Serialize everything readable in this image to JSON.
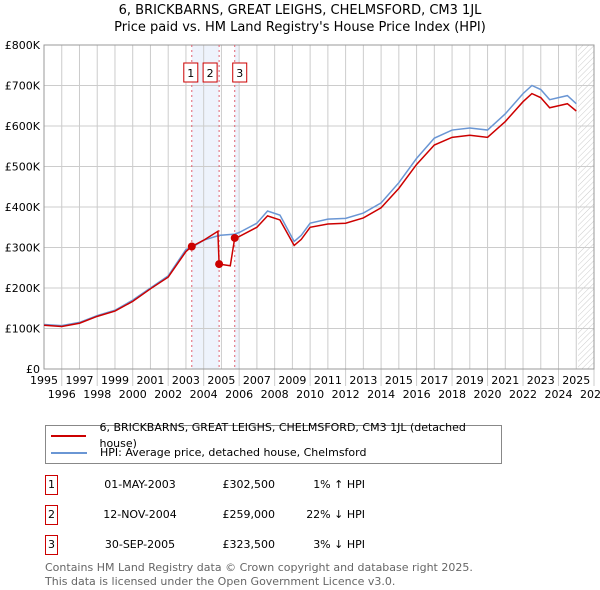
{
  "title": "6, BRICKBARNS, GREAT LEIGHS, CHELMSFORD, CM3 1JL",
  "subtitle": "Price paid vs. HM Land Registry's House Price Index (HPI)",
  "chart_data": {
    "type": "line",
    "ylim": [
      0,
      800000
    ],
    "xlim": [
      1995,
      2026
    ],
    "yticks": [
      {
        "v": 0,
        "label": "£0"
      },
      {
        "v": 100000,
        "label": "£100K"
      },
      {
        "v": 200000,
        "label": "£200K"
      },
      {
        "v": 300000,
        "label": "£300K"
      },
      {
        "v": 400000,
        "label": "£400K"
      },
      {
        "v": 500000,
        "label": "£500K"
      },
      {
        "v": 600000,
        "label": "£600K"
      },
      {
        "v": 700000,
        "label": "£700K"
      },
      {
        "v": 800000,
        "label": "£800K"
      }
    ],
    "xticks": [
      "1995",
      "1996",
      "1997",
      "1998",
      "1999",
      "2000",
      "2001",
      "2002",
      "2003",
      "2004",
      "2005",
      "2006",
      "2007",
      "2008",
      "2009",
      "2010",
      "2011",
      "2012",
      "2013",
      "2014",
      "2015",
      "2016",
      "2017",
      "2018",
      "2019",
      "2020",
      "2021",
      "2022",
      "2023",
      "2024",
      "2025",
      "2026"
    ],
    "grid": true,
    "series": [
      {
        "name": "6, BRICKBARNS, GREAT LEIGHS, CHELMSFORD, CM3 1JL (detached house)",
        "color": "#cc0000",
        "x": [
          1995,
          1996,
          1997,
          1998,
          1999,
          2000,
          2001,
          2002,
          2003,
          2003.33,
          2004,
          2004.8,
          2004.87,
          2005.5,
          2005.75,
          2006,
          2007,
          2007.6,
          2008.3,
          2009.1,
          2009.5,
          2010,
          2011,
          2012,
          2013,
          2014,
          2015,
          2016,
          2017,
          2018,
          2019,
          2020,
          2021,
          2022,
          2022.5,
          2023,
          2023.5,
          2024,
          2024.5,
          2025
        ],
        "y": [
          108000,
          105000,
          113000,
          130000,
          143000,
          167000,
          198000,
          227000,
          290000,
          302500,
          318000,
          340000,
          259000,
          255000,
          323500,
          327000,
          350000,
          378000,
          368000,
          305000,
          320000,
          350000,
          358000,
          360000,
          373000,
          398000,
          446000,
          505000,
          553000,
          572000,
          577000,
          572000,
          611000,
          660000,
          680000,
          670000,
          645000,
          650000,
          655000,
          637000
        ]
      },
      {
        "name": "HPI: Average price, detached house, Chelmsford",
        "color": "#6a96d4",
        "x": [
          1995,
          1996,
          1997,
          1998,
          1999,
          2000,
          2001,
          2002,
          2003,
          2003.33,
          2004,
          2004.87,
          2005.75,
          2006,
          2007,
          2007.6,
          2008.3,
          2009.1,
          2009.5,
          2010,
          2011,
          2012,
          2013,
          2014,
          2015,
          2016,
          2017,
          2018,
          2019,
          2020,
          2021,
          2022,
          2022.5,
          2023,
          2023.5,
          2024,
          2024.5,
          2025
        ],
        "y": [
          110000,
          107000,
          115000,
          132000,
          145000,
          170000,
          200000,
          230000,
          295000,
          300000,
          318000,
          330000,
          333000,
          337000,
          360000,
          390000,
          380000,
          315000,
          330000,
          360000,
          370000,
          372000,
          385000,
          410000,
          460000,
          520000,
          570000,
          590000,
          595000,
          590000,
          630000,
          680000,
          700000,
          690000,
          665000,
          670000,
          675000,
          655000
        ]
      }
    ],
    "sales": [
      {
        "n": "1",
        "x": 2003.33,
        "y": 302500
      },
      {
        "n": "2",
        "x": 2004.87,
        "y": 259000
      },
      {
        "n": "3",
        "x": 2005.75,
        "y": 323500
      }
    ]
  },
  "legend": {
    "red": "6, BRICKBARNS, GREAT LEIGHS, CHELMSFORD, CM3 1JL (detached house)",
    "blue": "HPI: Average price, detached house, Chelmsford"
  },
  "transactions": [
    {
      "n": "1",
      "date": "01-MAY-2003",
      "price": "£302,500",
      "hpi": "1% ↑ HPI"
    },
    {
      "n": "2",
      "date": "12-NOV-2004",
      "price": "£259,000",
      "hpi": "22% ↓ HPI"
    },
    {
      "n": "3",
      "date": "30-SEP-2005",
      "price": "£323,500",
      "hpi": "3% ↓ HPI"
    }
  ],
  "footer": [
    "Contains HM Land Registry data © Crown copyright and database right 2025.",
    "This data is licensed under the Open Government Licence v3.0."
  ]
}
